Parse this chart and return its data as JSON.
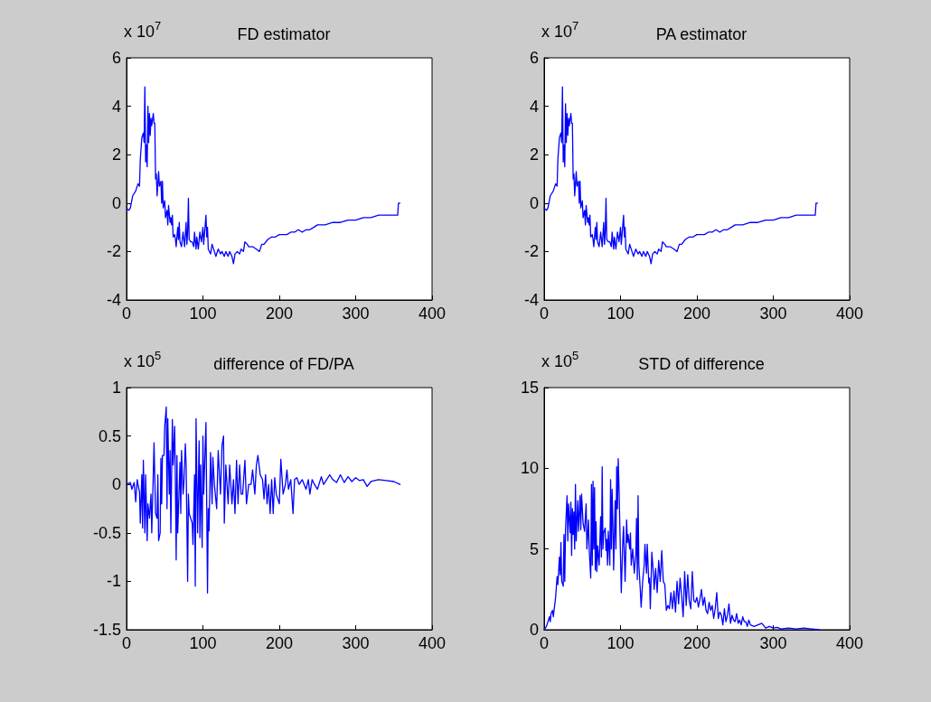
{
  "chart_data": [
    {
      "type": "line",
      "title": "FD estimator",
      "ylabel": "x 10$^{7}$",
      "xlim": [
        0,
        400
      ],
      "xticks": [
        0,
        100,
        200,
        300,
        400
      ],
      "ylim": [
        -4,
        6
      ],
      "yticks": [
        -4,
        -2,
        0,
        2,
        4,
        6
      ],
      "grid": false,
      "marker": "none",
      "line_style": "solid",
      "series": [
        {
          "color": "#0000ff",
          "x": [
            0,
            3,
            5,
            8,
            12,
            15,
            17,
            18,
            20,
            22,
            23,
            24,
            25,
            26,
            27,
            28,
            29,
            30,
            31,
            32,
            33,
            35,
            36,
            37,
            38,
            39,
            40,
            42,
            43,
            45,
            46,
            47,
            48,
            50,
            51,
            53,
            54,
            55,
            57,
            58,
            59,
            60,
            61,
            63,
            64,
            65,
            67,
            68,
            69,
            70,
            72,
            74,
            76,
            78,
            79,
            80,
            81,
            82,
            84,
            86,
            88,
            89,
            91,
            92,
            94,
            96,
            98,
            100,
            101,
            104,
            105,
            106,
            107,
            110,
            112,
            115,
            117,
            120,
            123,
            125,
            128,
            130,
            133,
            135,
            138,
            140,
            142,
            145,
            148,
            150,
            153,
            155,
            158,
            160,
            165,
            170,
            174,
            177,
            180,
            185,
            190,
            195,
            200,
            205,
            210,
            215,
            220,
            225,
            230,
            235,
            240,
            245,
            250,
            260,
            270,
            280,
            290,
            300,
            310,
            320,
            330,
            340,
            355,
            356,
            358
          ],
          "values": [
            -0.2,
            -0.3,
            -0.2,
            0.3,
            0.5,
            0.8,
            0.7,
            1.8,
            2.7,
            2.9,
            2.5,
            4.8,
            1.7,
            2.4,
            1.5,
            4.0,
            2.5,
            3.7,
            2.8,
            3.5,
            3.2,
            3.7,
            3.3,
            3.3,
            1.0,
            1.2,
            0.3,
            1.3,
            0.7,
            0.9,
            0.0,
            0.9,
            -0.2,
            0.1,
            -0.6,
            -0.3,
            -0.9,
            -0.1,
            -0.8,
            -0.6,
            -0.9,
            -0.5,
            -1.4,
            -1.3,
            -1.5,
            -1.8,
            -1.0,
            -1.5,
            -0.8,
            -1.6,
            -1.8,
            -1.2,
            -1.8,
            -0.8,
            -1.7,
            -1.2,
            0.2,
            -1.5,
            -1.6,
            -1.6,
            -1.8,
            -1.2,
            -1.9,
            -1.4,
            -1.9,
            -1.2,
            -1.6,
            -1.0,
            -1.7,
            -0.5,
            -1.4,
            -1.0,
            -1.9,
            -2.1,
            -1.7,
            -2.0,
            -2.2,
            -1.9,
            -2.1,
            -2.0,
            -2.2,
            -2.0,
            -2.2,
            -2.0,
            -2.2,
            -2.5,
            -2.1,
            -2.0,
            -2.1,
            -1.9,
            -2.0,
            -1.6,
            -1.7,
            -1.8,
            -1.8,
            -1.9,
            -2.0,
            -1.7,
            -1.7,
            -1.5,
            -1.4,
            -1.4,
            -1.3,
            -1.3,
            -1.3,
            -1.2,
            -1.2,
            -1.1,
            -1.2,
            -1.1,
            -1.1,
            -1.0,
            -0.9,
            -0.9,
            -0.8,
            -0.8,
            -0.7,
            -0.7,
            -0.6,
            -0.6,
            -0.5,
            -0.5,
            -0.5,
            0.0,
            0.0
          ]
        }
      ]
    },
    {
      "type": "line",
      "title": "PA estimator",
      "ylabel": "x 10$^{7}$",
      "xlim": [
        0,
        400
      ],
      "xticks": [
        0,
        100,
        200,
        300,
        400
      ],
      "ylim": [
        -4,
        6
      ],
      "yticks": [
        -4,
        -2,
        0,
        2,
        4,
        6
      ],
      "grid": false,
      "marker": "none",
      "line_style": "solid",
      "series": [
        {
          "color": "#0000ff",
          "x": [
            0,
            3,
            5,
            8,
            12,
            15,
            17,
            18,
            20,
            22,
            23,
            24,
            25,
            26,
            27,
            28,
            29,
            30,
            31,
            32,
            33,
            35,
            36,
            37,
            38,
            39,
            40,
            42,
            43,
            45,
            46,
            47,
            48,
            50,
            51,
            53,
            54,
            55,
            57,
            58,
            59,
            60,
            61,
            63,
            64,
            65,
            67,
            68,
            69,
            70,
            72,
            74,
            76,
            78,
            79,
            80,
            81,
            82,
            84,
            86,
            88,
            89,
            91,
            92,
            94,
            96,
            98,
            100,
            101,
            104,
            105,
            106,
            107,
            110,
            112,
            115,
            117,
            120,
            123,
            125,
            128,
            130,
            133,
            135,
            138,
            140,
            142,
            145,
            148,
            150,
            153,
            155,
            158,
            160,
            165,
            170,
            174,
            177,
            180,
            185,
            190,
            195,
            200,
            205,
            210,
            215,
            220,
            225,
            230,
            235,
            240,
            245,
            250,
            260,
            270,
            280,
            290,
            300,
            310,
            320,
            330,
            340,
            355,
            356,
            358
          ],
          "values": [
            -0.2,
            -0.3,
            -0.2,
            0.3,
            0.5,
            0.8,
            0.7,
            1.8,
            2.7,
            2.9,
            2.5,
            4.8,
            1.7,
            2.4,
            1.5,
            4.1,
            2.5,
            3.7,
            2.8,
            3.5,
            3.2,
            3.7,
            3.3,
            3.3,
            1.0,
            1.2,
            0.3,
            1.3,
            0.7,
            0.9,
            0.0,
            0.9,
            -0.2,
            0.1,
            -0.6,
            -0.3,
            -0.9,
            -0.1,
            -0.8,
            -0.6,
            -0.9,
            -0.5,
            -1.4,
            -1.3,
            -1.5,
            -1.8,
            -1.0,
            -1.5,
            -0.8,
            -1.6,
            -1.8,
            -1.2,
            -1.8,
            -0.8,
            -1.7,
            -1.2,
            0.2,
            -1.5,
            -1.6,
            -1.6,
            -1.8,
            -1.2,
            -1.9,
            -1.4,
            -1.9,
            -1.2,
            -1.6,
            -1.0,
            -1.7,
            -0.5,
            -1.4,
            -1.0,
            -1.9,
            -2.1,
            -1.7,
            -2.0,
            -2.2,
            -1.9,
            -2.1,
            -2.0,
            -2.2,
            -2.0,
            -2.2,
            -2.0,
            -2.2,
            -2.5,
            -2.1,
            -2.0,
            -2.1,
            -1.9,
            -2.0,
            -1.6,
            -1.7,
            -1.8,
            -1.8,
            -1.9,
            -2.0,
            -1.7,
            -1.7,
            -1.5,
            -1.4,
            -1.4,
            -1.3,
            -1.3,
            -1.3,
            -1.2,
            -1.2,
            -1.1,
            -1.2,
            -1.1,
            -1.1,
            -1.0,
            -0.9,
            -0.9,
            -0.8,
            -0.8,
            -0.7,
            -0.7,
            -0.6,
            -0.6,
            -0.5,
            -0.5,
            -0.5,
            0.0,
            0.0
          ]
        }
      ]
    },
    {
      "type": "line",
      "title": "difference of FD/PA",
      "ylabel": "x 10$^{5}$",
      "xlim": [
        0,
        400
      ],
      "xticks": [
        0,
        100,
        200,
        300,
        400
      ],
      "ylim": [
        -1.5,
        1
      ],
      "yticks": [
        -1.5,
        -1,
        -0.5,
        0,
        0.5,
        1
      ],
      "grid": false,
      "marker": "none",
      "line_style": "solid",
      "series": [
        {
          "color": "#0000ff",
          "x": [
            0,
            5,
            7,
            10,
            12,
            14,
            15,
            17,
            18,
            20,
            21,
            22,
            24,
            25,
            27,
            28,
            30,
            32,
            33,
            35,
            36,
            38,
            40,
            41,
            42,
            44,
            45,
            46,
            47,
            49,
            50,
            52,
            53,
            54,
            55,
            56,
            57,
            58,
            60,
            61,
            63,
            64,
            65,
            66,
            67,
            70,
            71,
            72,
            74,
            75,
            77,
            78,
            80,
            81,
            82,
            84,
            86,
            87,
            89,
            90,
            91,
            93,
            95,
            96,
            97,
            99,
            100,
            101,
            104,
            106,
            107,
            108,
            110,
            112,
            113,
            115,
            118,
            120,
            123,
            125,
            127,
            128,
            130,
            133,
            135,
            138,
            140,
            142,
            144,
            146,
            148,
            150,
            152,
            155,
            157,
            160,
            163,
            165,
            168,
            170,
            172,
            175,
            178,
            180,
            182,
            184,
            186,
            188,
            190,
            192,
            194,
            196,
            200,
            202,
            205,
            208,
            210,
            212,
            215,
            218,
            220,
            223,
            226,
            230,
            235,
            238,
            240,
            243,
            246,
            250,
            255,
            258,
            262,
            266,
            270,
            275,
            280,
            285,
            290,
            295,
            300,
            305,
            310,
            315,
            320,
            330,
            340,
            350,
            358
          ],
          "values": [
            0,
            0.02,
            -0.05,
            0.02,
            -0.18,
            0.05,
            0.0,
            -0.08,
            -0.4,
            0.1,
            -0.45,
            0.25,
            -0.5,
            0.1,
            -0.58,
            -0.2,
            -0.35,
            -0.1,
            -0.5,
            0.1,
            0.43,
            -0.3,
            -0.35,
            0.1,
            -0.58,
            -0.5,
            0.27,
            -0.2,
            0.3,
            0.3,
            0.6,
            0.8,
            -0.25,
            0.68,
            0.25,
            -0.1,
            0.35,
            -0.5,
            0.67,
            0.2,
            0.6,
            0.0,
            -0.78,
            0.3,
            -0.5,
            0.23,
            -0.3,
            0.35,
            -0.1,
            0.0,
            0.42,
            0.2,
            -1.0,
            -0.1,
            -0.3,
            -0.35,
            -0.4,
            -0.62,
            0.1,
            -1.05,
            0.68,
            -0.5,
            0.45,
            -0.55,
            0.2,
            -0.65,
            0.5,
            -0.1,
            0.64,
            -1.12,
            -0.25,
            -0.48,
            0.33,
            -0.2,
            0.28,
            0.0,
            -0.25,
            0.35,
            -0.1,
            0.4,
            0.5,
            -0.4,
            0.2,
            -0.2,
            0.2,
            -0.2,
            0.05,
            -0.3,
            0.25,
            -0.2,
            0.2,
            -0.1,
            -0.1,
            0.25,
            -0.2,
            0.0,
            0.0,
            0.15,
            -0.1,
            0.2,
            0.3,
            0.1,
            0.05,
            -0.15,
            0.1,
            -0.2,
            0.0,
            -0.3,
            0.05,
            -0.3,
            0.07,
            -0.1,
            -0.2,
            0.26,
            -0.1,
            0.0,
            0.15,
            -0.05,
            0.05,
            -0.3,
            0.05,
            0.07,
            0.0,
            0.05,
            -0.05,
            0.05,
            -0.1,
            0.05,
            0.0,
            -0.05,
            0.08,
            0.0,
            0.05,
            0.1,
            0.05,
            0.02,
            0.1,
            0.02,
            0.08,
            0.03,
            0.07,
            0.04,
            0.05,
            -0.02,
            0.03,
            0.05,
            0.04,
            0.03,
            0.0
          ]
        }
      ]
    },
    {
      "type": "line",
      "title": "STD of difference",
      "ylabel": "x 10$^{5}$",
      "xlim": [
        0,
        400
      ],
      "xticks": [
        0,
        100,
        200,
        300,
        400
      ],
      "ylim": [
        0,
        15
      ],
      "yticks": [
        0,
        5,
        10,
        15
      ],
      "grid": false,
      "marker": "none",
      "line_style": "solid",
      "series": [
        {
          "color": "#0000ff",
          "x": [
            0,
            3,
            5,
            7,
            8,
            9,
            11,
            12,
            14,
            15,
            17,
            18,
            20,
            21,
            22,
            23,
            25,
            26,
            27,
            28,
            30,
            31,
            32,
            34,
            35,
            36,
            37,
            38,
            39,
            40,
            41,
            42,
            44,
            45,
            47,
            48,
            49,
            51,
            53,
            55,
            56,
            58,
            59,
            61,
            62,
            63,
            64,
            65,
            66,
            67,
            68,
            69,
            70,
            72,
            74,
            75,
            76,
            77,
            78,
            80,
            81,
            82,
            83,
            84,
            86,
            87,
            88,
            89,
            90,
            91,
            93,
            94,
            95,
            96,
            97,
            98,
            100,
            101,
            103,
            104,
            106,
            108,
            109,
            110,
            112,
            113,
            114,
            116,
            118,
            120,
            121,
            122,
            123,
            124,
            126,
            127,
            129,
            131,
            132,
            134,
            135,
            137,
            138,
            139,
            141,
            143,
            144,
            146,
            148,
            150,
            152,
            154,
            156,
            158,
            160,
            162,
            164,
            166,
            168,
            170,
            172,
            174,
            176,
            178,
            180,
            182,
            184,
            186,
            188,
            190,
            192,
            194,
            196,
            198,
            200,
            202,
            204,
            206,
            208,
            210,
            212,
            214,
            216,
            218,
            220,
            222,
            224,
            226,
            228,
            230,
            232,
            234,
            236,
            238,
            240,
            242,
            244,
            246,
            248,
            250,
            252,
            254,
            256,
            258,
            260,
            262,
            264,
            266,
            268,
            270,
            275,
            280,
            285,
            290,
            295,
            300,
            305,
            310,
            320,
            330,
            340,
            350,
            360
          ],
          "values": [
            0,
            0.2,
            0.5,
            0.8,
            0.5,
            1.0,
            1.2,
            0.8,
            1.6,
            2.0,
            3.3,
            2.8,
            4.5,
            3.4,
            5.4,
            3.0,
            2.7,
            5.9,
            3.0,
            6.2,
            8.3,
            5.5,
            7.8,
            6.0,
            7.9,
            4.6,
            7.5,
            5.9,
            7.3,
            5.0,
            9.0,
            5.5,
            8.0,
            6.1,
            8.3,
            6.2,
            8.4,
            6.6,
            6.1,
            7.8,
            5.0,
            6.8,
            5.0,
            3.2,
            9.0,
            4.0,
            9.2,
            5.0,
            8.8,
            3.7,
            6.7,
            3.6,
            5.2,
            4.0,
            7.0,
            4.5,
            10.1,
            5.0,
            6.0,
            6.3,
            4.9,
            5.6,
            4.0,
            6.1,
            4.0,
            9.3,
            5.0,
            8.7,
            6.5,
            3.7,
            8.0,
            5.0,
            10.1,
            7.5,
            10.6,
            8.9,
            4.5,
            2.3,
            5.5,
            6.4,
            3.0,
            6.8,
            5.4,
            5.9,
            5.0,
            6.0,
            4.0,
            5.0,
            3.5,
            4.7,
            6.9,
            3.1,
            8.3,
            4.0,
            2.4,
            1.4,
            3.0,
            4.0,
            5.3,
            3.5,
            5.3,
            2.9,
            3.2,
            1.3,
            4.8,
            3.5,
            2.5,
            3.8,
            2.3,
            4.3,
            3.0,
            4.9,
            3.0,
            2.8,
            1.2,
            1.5,
            1.3,
            2.3,
            1.3,
            2.4,
            1.1,
            3.0,
            1.6,
            3.2,
            2.1,
            0.8,
            3.6,
            1.5,
            3.4,
            1.8,
            1.3,
            3.6,
            1.8,
            1.7,
            2.0,
            1.4,
            1.9,
            2.5,
            1.5,
            2.0,
            1.2,
            1.0,
            1.7,
            1.2,
            1.5,
            0.7,
            1.3,
            2.3,
            0.7,
            1.1,
            0.9,
            0.3,
            1.3,
            0.5,
            0.9,
            1.6,
            0.4,
            0.9,
            0.6,
            0.5,
            1.0,
            0.4,
            0.6,
            0.3,
            0.8,
            0.5,
            0.5,
            0.2,
            0.6,
            0.3,
            0.2,
            0.3,
            0.4,
            0.1,
            0.2,
            0.1,
            0.15,
            0.05,
            0.1,
            0.05,
            0.1,
            0.05,
            0
          ]
        }
      ]
    }
  ]
}
